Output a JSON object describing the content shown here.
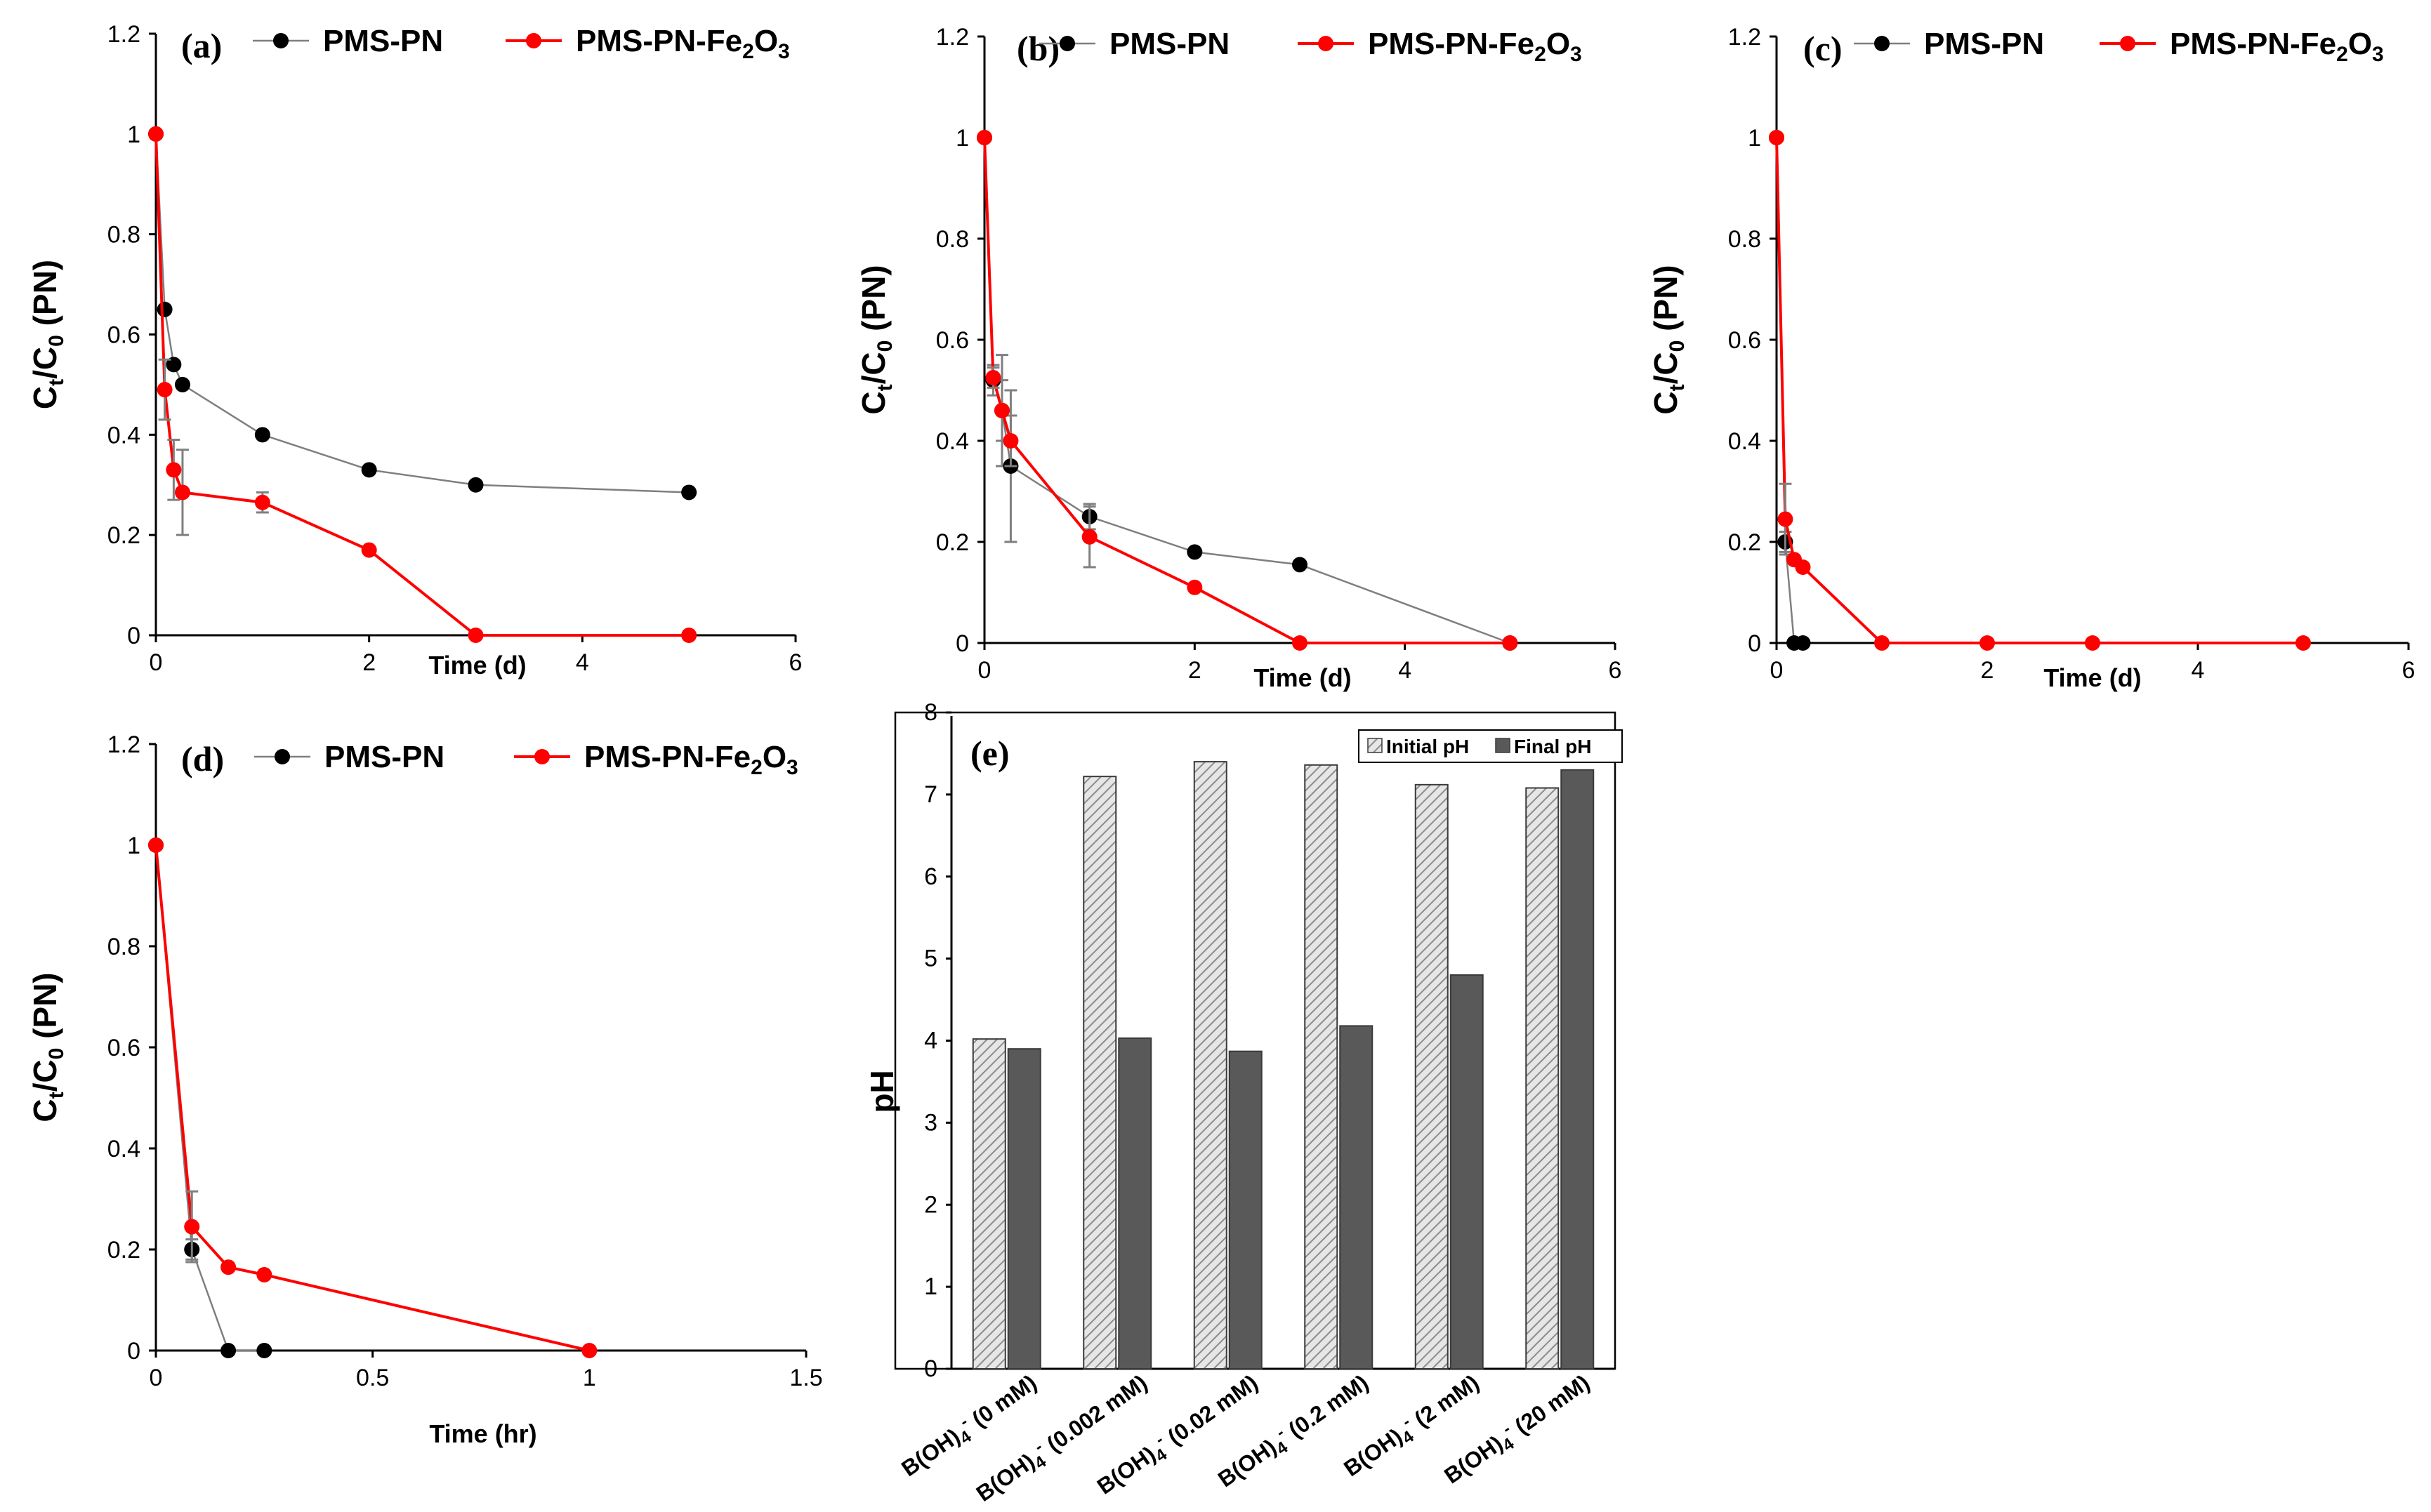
{
  "colors": {
    "black_series": "#000000",
    "red_series": "#ff0000",
    "grey_line": "#7f7f7f",
    "initial_bar": "#d0d0d0",
    "final_bar": "#595959"
  },
  "chart_data": [
    {
      "id": "a",
      "type": "line",
      "panel_label": "(a)",
      "xlabel": "Time (d)",
      "ylabel_main": "C",
      "ylabel_sub1": "t",
      "ylabel_mid": "/C",
      "ylabel_sub2": "0",
      "ylabel_tail": " (PN)",
      "xlim": [
        0,
        6
      ],
      "ylim": [
        0,
        1.2
      ],
      "xticks": [
        0,
        2,
        4,
        6
      ],
      "yticks": [
        0,
        0.2,
        0.4,
        0.6,
        0.8,
        1,
        1.2
      ],
      "xtick_labels": [
        "0",
        "2",
        "4",
        "6"
      ],
      "ytick_labels": [
        "0",
        "0.2",
        "0.4",
        "0.6",
        "0.8",
        "1",
        "1.2"
      ],
      "legend_position": "top",
      "series": [
        {
          "name": "PMS-PN",
          "color": "#000000",
          "x": [
            0,
            0.083,
            0.167,
            0.25,
            1,
            2,
            3,
            5
          ],
          "y": [
            1,
            0.65,
            0.54,
            0.5,
            0.4,
            0.33,
            0.3,
            0.285
          ],
          "err": [
            0,
            0,
            0,
            0,
            0,
            0,
            0,
            0
          ]
        },
        {
          "name_main": "PMS-PN-Fe",
          "name_sub": "2",
          "name_mid": "O",
          "name_sub2": "3",
          "color": "#ff0000",
          "x": [
            0,
            0.083,
            0.167,
            0.25,
            1,
            2,
            3,
            5
          ],
          "y": [
            1,
            0.49,
            0.33,
            0.285,
            0.265,
            0.17,
            0,
            0
          ],
          "err": [
            0,
            0.06,
            0.06,
            0.085,
            0.02,
            0,
            0,
            0
          ]
        }
      ]
    },
    {
      "id": "b",
      "type": "line",
      "panel_label": "(b)",
      "xlabel": "Time (d)",
      "ylabel_main": "C",
      "ylabel_sub1": "t",
      "ylabel_mid": "/C",
      "ylabel_sub2": "0",
      "ylabel_tail": " (PN)",
      "xlim": [
        0,
        6
      ],
      "ylim": [
        0,
        1.2
      ],
      "xticks": [
        0,
        2,
        4,
        6
      ],
      "yticks": [
        0,
        0.2,
        0.4,
        0.6,
        0.8,
        1,
        1.2
      ],
      "xtick_labels": [
        "0",
        "2",
        "4",
        "6"
      ],
      "ytick_labels": [
        "0",
        "0.2",
        "0.4",
        "0.6",
        "0.8",
        "1",
        "1.2"
      ],
      "legend_position": "top",
      "series": [
        {
          "name": "PMS-PN",
          "color": "#000000",
          "x": [
            0,
            0.083,
            0.167,
            0.25,
            1,
            2,
            3,
            5
          ],
          "y": [
            1,
            0.52,
            0.46,
            0.35,
            0.25,
            0.18,
            0.155,
            0
          ],
          "err": [
            0,
            0.03,
            0.11,
            0.15,
            0.025,
            0,
            0,
            0
          ]
        },
        {
          "name_main": "PMS-PN-Fe",
          "name_sub": "2",
          "name_mid": "O",
          "name_sub2": "3",
          "color": "#ff0000",
          "x": [
            0,
            0.083,
            0.167,
            0.25,
            1,
            2,
            3,
            5
          ],
          "y": [
            1,
            0.525,
            0.46,
            0.4,
            0.21,
            0.11,
            0,
            0
          ],
          "err": [
            0,
            0.02,
            0.06,
            0.05,
            0.06,
            0,
            0,
            0
          ]
        }
      ]
    },
    {
      "id": "c",
      "type": "line",
      "panel_label": "(c)",
      "xlabel": "Time (d)",
      "ylabel_main": "C",
      "ylabel_sub1": "t",
      "ylabel_mid": "/C",
      "ylabel_sub2": "0",
      "ylabel_tail": " (PN)",
      "xlim": [
        0,
        6
      ],
      "ylim": [
        0,
        1.2
      ],
      "xticks": [
        0,
        2,
        4,
        6
      ],
      "yticks": [
        0,
        0.2,
        0.4,
        0.6,
        0.8,
        1,
        1.2
      ],
      "xtick_labels": [
        "0",
        "2",
        "4",
        "6"
      ],
      "ytick_labels": [
        "0",
        "0.2",
        "0.4",
        "0.6",
        "0.8",
        "1",
        "1.2"
      ],
      "legend_position": "top",
      "series": [
        {
          "name": "PMS-PN",
          "color": "#000000",
          "x": [
            0,
            0.083,
            0.167,
            0.25
          ],
          "y": [
            1,
            0.2,
            0,
            0
          ],
          "err": [
            0,
            0.02,
            0,
            0
          ]
        },
        {
          "name_main": "PMS-PN-Fe",
          "name_sub": "2",
          "name_mid": "O",
          "name_sub2": "3",
          "color": "#ff0000",
          "x": [
            0,
            0.083,
            0.167,
            0.25,
            1,
            2,
            3,
            5
          ],
          "y": [
            1,
            0.245,
            0.165,
            0.15,
            0,
            0,
            0,
            0
          ],
          "err": [
            0,
            0.07,
            0,
            0,
            0,
            0,
            0,
            0
          ]
        }
      ]
    },
    {
      "id": "d",
      "type": "line",
      "panel_label": "(d)",
      "xlabel": "Time (hr)",
      "ylabel_main": "C",
      "ylabel_sub1": "t",
      "ylabel_mid": "/C",
      "ylabel_sub2": "0",
      "ylabel_tail": " (PN)",
      "xlim": [
        0,
        1.5
      ],
      "ylim": [
        0,
        1.2
      ],
      "xticks": [
        0,
        0.5,
        1,
        1.5
      ],
      "yticks": [
        0,
        0.2,
        0.4,
        0.6,
        0.8,
        1,
        1.2
      ],
      "xtick_labels": [
        "0",
        "0.5",
        "1",
        "1.5"
      ],
      "ytick_labels": [
        "0",
        "0.2",
        "0.4",
        "0.6",
        "0.8",
        "1",
        "1.2"
      ],
      "legend_position": "top",
      "series": [
        {
          "name": "PMS-PN",
          "color": "#000000",
          "x": [
            0,
            0.083,
            0.167,
            0.25
          ],
          "y": [
            1,
            0.2,
            0,
            0
          ],
          "err": [
            0,
            0.02,
            0,
            0
          ]
        },
        {
          "name_main": "PMS-PN-Fe",
          "name_sub": "2",
          "name_mid": "O",
          "name_sub2": "3",
          "color": "#ff0000",
          "x": [
            0,
            0.083,
            0.167,
            0.25,
            1
          ],
          "y": [
            1,
            0.245,
            0.165,
            0.15,
            0
          ],
          "err": [
            0,
            0.07,
            0,
            0,
            0
          ]
        }
      ]
    },
    {
      "id": "e",
      "type": "bar",
      "panel_label": "(e)",
      "ylabel": "pH",
      "ylim": [
        0,
        8
      ],
      "yticks": [
        0,
        1,
        2,
        3,
        4,
        5,
        6,
        7,
        8
      ],
      "ytick_labels": [
        "0",
        "1",
        "2",
        "3",
        "4",
        "5",
        "6",
        "7",
        "8"
      ],
      "legend_position": "top-right",
      "category_prefix": "B(OH)",
      "category_sub": "4",
      "category_sup": "-",
      "categories": [
        " (0 mM)",
        " (0.002 mM)",
        " (0.02 mM)",
        " (0.2 mM)",
        " (2 mM)",
        " (20 mM)"
      ],
      "series": [
        {
          "name": "Initial pH",
          "values": [
            4.02,
            7.22,
            7.4,
            7.36,
            7.12,
            7.08
          ]
        },
        {
          "name": "Final pH",
          "values": [
            3.9,
            4.03,
            3.87,
            4.18,
            4.8,
            7.3
          ]
        }
      ]
    }
  ]
}
